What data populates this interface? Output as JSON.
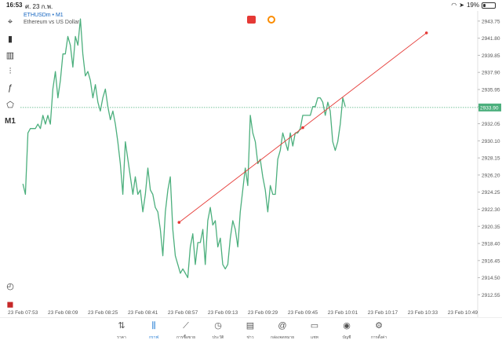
{
  "status": {
    "time": "16:53",
    "date": "ศ. 23 ก.พ.",
    "battery": "19%",
    "battery_level": 0.19
  },
  "symbol": {
    "name": "ETHUSDm • M1",
    "description": "Ethereum vs US Dollar"
  },
  "toolbar": {
    "items": [
      {
        "name": "crosshair",
        "glyph": "⌖"
      },
      {
        "name": "chart-type",
        "glyph": "▮"
      },
      {
        "name": "indicators",
        "glyph": "▥"
      },
      {
        "name": "settings-sliders",
        "glyph": "⫶"
      },
      {
        "name": "function",
        "glyph": "ƒ"
      },
      {
        "name": "shapes",
        "glyph": "⬠"
      }
    ],
    "timeframe": "M1",
    "bottom_icons": [
      {
        "name": "check-circle",
        "glyph": "◴"
      },
      {
        "name": "app-logo",
        "glyph": "◼"
      }
    ]
  },
  "chart_data": {
    "type": "line",
    "title": "ETHUSDm • M1",
    "subtitle": "Ethereum vs US Dollar",
    "current_price": "2933.90",
    "y_ticks": [
      "2943.75",
      "2941.80",
      "2939.85",
      "2937.90",
      "2935.95",
      "2934.00",
      "2932.05",
      "2930.10",
      "2928.15",
      "2926.20",
      "2924.25",
      "2922.30",
      "2920.35",
      "2918.40",
      "2916.45",
      "2914.50",
      "2912.55"
    ],
    "x_ticks": [
      "23 Feb 07:53",
      "23 Feb 08:09",
      "23 Feb 08:25",
      "23 Feb 08:41",
      "23 Feb 08:57",
      "23 Feb 09:13",
      "23 Feb 09:29",
      "23 Feb 09:45",
      "23 Feb 10:01",
      "23 Feb 10:17",
      "23 Feb 10:33",
      "23 Feb 10:49"
    ],
    "ylim": [
      2911.6,
      2944.9
    ],
    "x_range_minutes": [
      -1,
      182
    ],
    "series": [
      {
        "color": "#4caf7d",
        "points": [
          [
            0,
            2925.2
          ],
          [
            1,
            2924.0
          ],
          [
            2,
            2931.0
          ],
          [
            3,
            2931.5
          ],
          [
            4,
            2931.5
          ],
          [
            5,
            2931.5
          ],
          [
            6,
            2932.0
          ],
          [
            7,
            2931.5
          ],
          [
            8,
            2933.0
          ],
          [
            9,
            2932.0
          ],
          [
            10,
            2933.0
          ],
          [
            11,
            2932.0
          ],
          [
            12,
            2936.0
          ],
          [
            13,
            2938.0
          ],
          [
            14,
            2935.0
          ],
          [
            15,
            2937.0
          ],
          [
            16,
            2940.0
          ],
          [
            17,
            2940.0
          ],
          [
            18,
            2942.0
          ],
          [
            19,
            2941.0
          ],
          [
            20,
            2938.5
          ],
          [
            21,
            2942.0
          ],
          [
            22,
            2941.0
          ],
          [
            23,
            2944.0
          ],
          [
            24,
            2940.0
          ],
          [
            25,
            2937.5
          ],
          [
            26,
            2938.0
          ],
          [
            27,
            2937.0
          ],
          [
            28,
            2935.0
          ],
          [
            29,
            2936.5
          ],
          [
            30,
            2934.5
          ],
          [
            31,
            2933.5
          ],
          [
            32,
            2935.0
          ],
          [
            33,
            2936.0
          ],
          [
            34,
            2934.0
          ],
          [
            35,
            2932.5
          ],
          [
            36,
            2933.5
          ],
          [
            37,
            2932.0
          ],
          [
            38,
            2930.0
          ],
          [
            39,
            2927.5
          ],
          [
            40,
            2924.0
          ],
          [
            41,
            2930.0
          ],
          [
            42,
            2928.0
          ],
          [
            43,
            2926.0
          ],
          [
            44,
            2924.0
          ],
          [
            45,
            2926.0
          ],
          [
            46,
            2924.0
          ],
          [
            47,
            2924.5
          ],
          [
            48,
            2922.0
          ],
          [
            49,
            2924.0
          ],
          [
            50,
            2927.0
          ],
          [
            51,
            2924.5
          ],
          [
            52,
            2924.0
          ],
          [
            53,
            2922.5
          ],
          [
            54,
            2922.0
          ],
          [
            55,
            2920.0
          ],
          [
            56,
            2917.0
          ],
          [
            57,
            2922.0
          ],
          [
            58,
            2924.5
          ],
          [
            59,
            2926.0
          ],
          [
            60,
            2920.0
          ],
          [
            61,
            2917.0
          ],
          [
            62,
            2916.0
          ],
          [
            63,
            2915.0
          ],
          [
            64,
            2915.5
          ],
          [
            65,
            2915.0
          ],
          [
            66,
            2914.5
          ],
          [
            67,
            2918.0
          ],
          [
            68,
            2919.5
          ],
          [
            69,
            2916.0
          ],
          [
            70,
            2918.5
          ],
          [
            71,
            2918.5
          ],
          [
            72,
            2920.0
          ],
          [
            73,
            2916.0
          ],
          [
            74,
            2921.0
          ],
          [
            75,
            2922.5
          ],
          [
            76,
            2920.5
          ],
          [
            77,
            2921.0
          ],
          [
            78,
            2918.0
          ],
          [
            79,
            2919.0
          ],
          [
            80,
            2916.0
          ],
          [
            81,
            2915.5
          ],
          [
            82,
            2916.0
          ],
          [
            83,
            2919.0
          ],
          [
            84,
            2921.0
          ],
          [
            85,
            2920.0
          ],
          [
            86,
            2918.0
          ],
          [
            87,
            2922.0
          ],
          [
            88,
            2924.5
          ],
          [
            89,
            2927.0
          ],
          [
            90,
            2925.0
          ],
          [
            91,
            2933.0
          ],
          [
            92,
            2931.0
          ],
          [
            93,
            2930.0
          ],
          [
            94,
            2927.5
          ],
          [
            95,
            2928.0
          ],
          [
            96,
            2926.0
          ],
          [
            97,
            2924.5
          ],
          [
            98,
            2922.0
          ],
          [
            99,
            2925.0
          ],
          [
            100,
            2924.0
          ],
          [
            101,
            2924.0
          ],
          [
            102,
            2928.0
          ],
          [
            103,
            2929.0
          ],
          [
            104,
            2931.0
          ],
          [
            105,
            2930.0
          ],
          [
            106,
            2929.0
          ],
          [
            107,
            2931.0
          ],
          [
            108,
            2929.5
          ],
          [
            109,
            2931.0
          ],
          [
            110,
            2931.0
          ],
          [
            111,
            2931.5
          ],
          [
            112,
            2933.0
          ],
          [
            113,
            2933.0
          ],
          [
            114,
            2933.0
          ],
          [
            115,
            2933.0
          ],
          [
            116,
            2934.0
          ],
          [
            117,
            2934.0
          ],
          [
            118,
            2935.0
          ],
          [
            119,
            2935.0
          ],
          [
            120,
            2934.5
          ],
          [
            121,
            2933.0
          ],
          [
            122,
            2934.5
          ],
          [
            123,
            2933.5
          ],
          [
            124,
            2930.0
          ],
          [
            125,
            2929.0
          ],
          [
            126,
            2930.0
          ],
          [
            127,
            2932.0
          ],
          [
            128,
            2935.0
          ],
          [
            129,
            2934.0
          ]
        ]
      }
    ],
    "trendline": {
      "x1": 62.5,
      "y1": 2920.8,
      "x2": 161.5,
      "y2": 2942.4,
      "color": "#e53935"
    },
    "grid": false
  },
  "bottom_nav": [
    {
      "key": "quotes",
      "label": "ราคา",
      "glyph": "⇅",
      "active": false
    },
    {
      "key": "chart",
      "label": "กราฟ",
      "glyph": "⫼",
      "active": true
    },
    {
      "key": "trade",
      "label": "การซื้อขาย",
      "glyph": "⟋",
      "active": false
    },
    {
      "key": "history",
      "label": "ประวัติ",
      "glyph": "◷",
      "active": false
    },
    {
      "key": "news",
      "label": "ข่าว",
      "glyph": "▤",
      "active": false
    },
    {
      "key": "mailbox",
      "label": "กล่องจดหมาย",
      "glyph": "@",
      "active": false
    },
    {
      "key": "chat",
      "label": "แชท",
      "glyph": "▭",
      "active": false
    },
    {
      "key": "accounts",
      "label": "บัญชี",
      "glyph": "◉",
      "active": false
    },
    {
      "key": "settings",
      "label": "การตั้งค่า",
      "glyph": "⚙",
      "active": false
    }
  ]
}
